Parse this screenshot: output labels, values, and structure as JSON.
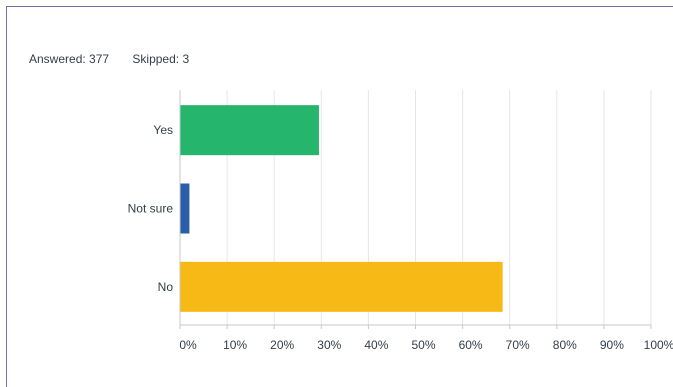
{
  "summary": {
    "answered": "Answered: 377",
    "skipped": "Skipped: 3"
  },
  "chart_data": {
    "type": "bar",
    "orientation": "horizontal",
    "categories": [
      "Yes",
      "Not sure",
      "No"
    ],
    "values": [
      29.5,
      2.0,
      68.5
    ],
    "colors": [
      "#26b56c",
      "#2a5ea8",
      "#f6b915"
    ],
    "xlim": [
      0,
      100
    ],
    "xticks": [
      "0%",
      "10%",
      "20%",
      "30%",
      "40%",
      "50%",
      "60%",
      "70%",
      "80%",
      "90%",
      "100%"
    ],
    "grid": true,
    "legend": "none"
  }
}
